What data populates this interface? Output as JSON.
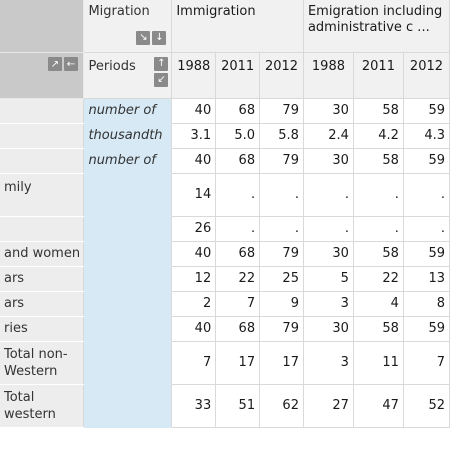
{
  "header": {
    "migration_label": "Migration",
    "periods_label": "Periods",
    "immigration_label": "Immigration",
    "emigration_label_line1": "Emigration including",
    "emigration_label_line2": "administrative c ..."
  },
  "years": [
    "1988",
    "2011",
    "2012",
    "1988",
    "2011",
    "2012"
  ],
  "rows": [
    {
      "label": "",
      "unit": "number of",
      "values": [
        "40",
        "68",
        "79",
        "30",
        "58",
        "59"
      ]
    },
    {
      "label": "",
      "unit": "thousandth",
      "values": [
        "3.1",
        "5.0",
        "5.8",
        "2.4",
        "4.2",
        "4.3"
      ]
    },
    {
      "label": "",
      "unit": "number of",
      "values": [
        "40",
        "68",
        "79",
        "30",
        "58",
        "59"
      ]
    },
    {
      "label": "mily",
      "unit": "",
      "values": [
        "14",
        ".",
        ".",
        ".",
        ".",
        "."
      ]
    },
    {
      "label": "",
      "unit": "",
      "values": [
        "26",
        ".",
        ".",
        ".",
        ".",
        "."
      ]
    },
    {
      "label": "and women",
      "unit": "",
      "values": [
        "40",
        "68",
        "79",
        "30",
        "58",
        "59"
      ]
    },
    {
      "label": "ars",
      "unit": "",
      "values": [
        "12",
        "22",
        "25",
        "5",
        "22",
        "13"
      ]
    },
    {
      "label": "ars",
      "unit": "",
      "values": [
        "2",
        "7",
        "9",
        "3",
        "4",
        "8"
      ]
    },
    {
      "label": "ries",
      "unit": "",
      "values": [
        "40",
        "68",
        "79",
        "30",
        "58",
        "59"
      ]
    },
    {
      "label_line1": "Total non-",
      "label_line2": "Western",
      "unit": "",
      "values": [
        "7",
        "17",
        "17",
        "3",
        "11",
        "7"
      ]
    },
    {
      "label_line1": "Total",
      "label_line2": "western",
      "unit": "",
      "values": [
        "33",
        "51",
        "62",
        "27",
        "47",
        "52"
      ]
    }
  ]
}
